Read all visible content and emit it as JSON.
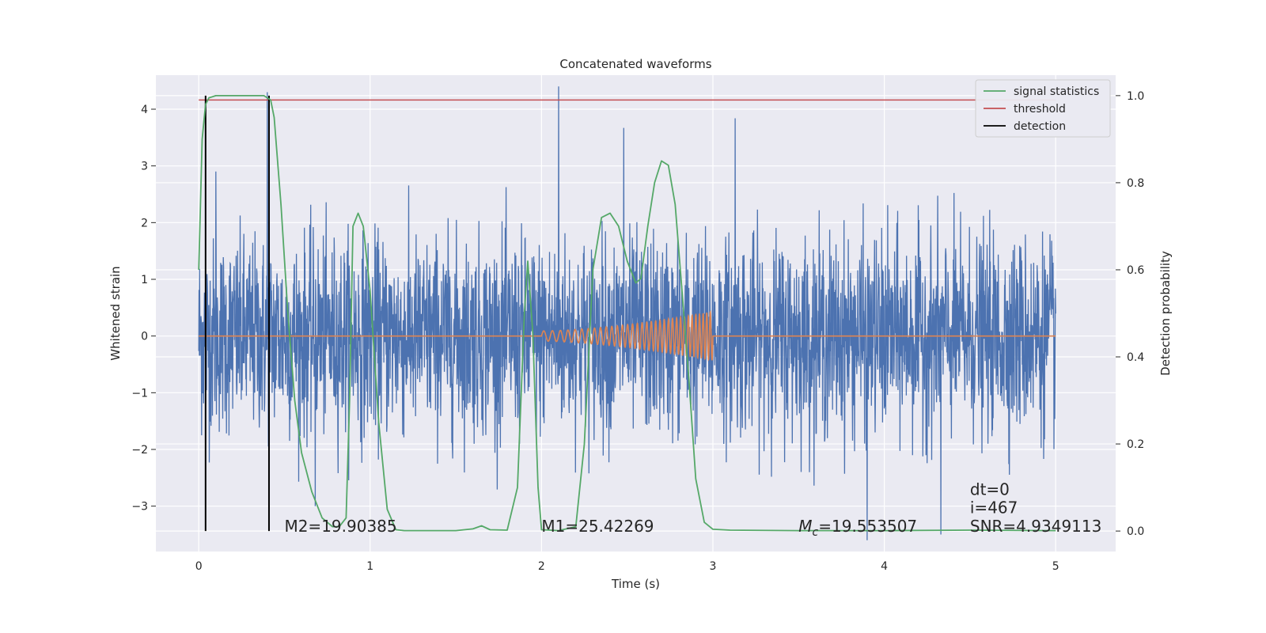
{
  "chart_data": {
    "type": "line",
    "title": "Concatenated waveforms",
    "xlabel": "Time (s)",
    "ylabel": "Whitened strain",
    "y2label": "Detection probability",
    "xlim": [
      -0.25,
      5.35
    ],
    "ylim": [
      -3.8,
      4.6
    ],
    "y2lim": [
      -0.047,
      1.047
    ],
    "xticks": [
      0,
      1,
      2,
      3,
      4,
      5
    ],
    "xtick_labels": [
      "0",
      "1",
      "2",
      "3",
      "4",
      "5"
    ],
    "yticks": [
      -3,
      -2,
      -1,
      0,
      1,
      2,
      3,
      4
    ],
    "ytick_labels": [
      "−3",
      "−2",
      "−1",
      "0",
      "1",
      "2",
      "3",
      "4"
    ],
    "y2ticks": [
      0.0,
      0.2,
      0.4,
      0.6,
      0.8,
      1.0
    ],
    "y2tick_labels": [
      "0.0",
      "0.2",
      "0.4",
      "0.6",
      "0.8",
      "1.0"
    ],
    "grid": true,
    "legend_position": "top-right",
    "legend": [
      "signal statistics",
      "threshold",
      "detection"
    ],
    "colors": {
      "strain": "#4c72b0",
      "template": "#dd8452",
      "statistic": "#55a868",
      "threshold": "#c44e52",
      "detection": "#000000",
      "background": "#eaeaf2",
      "grid": "#ffffff"
    },
    "strain_noise": {
      "x_range": [
        0,
        5
      ],
      "typical_range": [
        -2.2,
        2.4
      ],
      "extremes": [
        {
          "x": 2.1,
          "y": 4.4
        },
        {
          "x": 2.48,
          "y": 3.67
        },
        {
          "x": 3.13,
          "y": 3.84
        },
        {
          "x": 3.9,
          "y": -3.6
        },
        {
          "x": 0.4,
          "y": 4.3
        },
        {
          "x": 0.1,
          "y": 2.9
        },
        {
          "x": 4.33,
          "y": -3.5
        },
        {
          "x": 0.68,
          "y": -3.0
        }
      ]
    },
    "template": {
      "x_range": [
        2.0,
        3.0
      ],
      "amplitude_start": 0.09,
      "amplitude_end": 0.43,
      "cycles": 34
    },
    "signal_statistics": {
      "x": [
        0.0,
        0.02,
        0.04,
        0.06,
        0.1,
        0.15,
        0.3,
        0.38,
        0.42,
        0.44,
        0.48,
        0.52,
        0.56,
        0.6,
        0.66,
        0.72,
        0.78,
        0.82,
        0.86,
        0.88,
        0.9,
        0.93,
        0.96,
        1.0,
        1.05,
        1.1,
        1.15,
        1.2,
        1.3,
        1.5,
        1.6,
        1.65,
        1.7,
        1.8,
        1.86,
        1.9,
        1.92,
        1.95,
        1.98,
        2.0,
        2.05,
        2.1,
        2.2,
        2.25,
        2.3,
        2.35,
        2.4,
        2.45,
        2.5,
        2.55,
        2.58,
        2.62,
        2.66,
        2.7,
        2.74,
        2.78,
        2.82,
        2.86,
        2.9,
        2.95,
        3.0,
        3.1,
        3.5,
        4.0,
        4.5,
        5.0
      ],
      "y": [
        0.6,
        0.9,
        0.98,
        0.995,
        1.0,
        1.0,
        1.0,
        1.0,
        0.99,
        0.95,
        0.75,
        0.5,
        0.3,
        0.18,
        0.09,
        0.03,
        0.01,
        0.01,
        0.03,
        0.3,
        0.7,
        0.73,
        0.7,
        0.55,
        0.25,
        0.05,
        0.003,
        0.001,
        0.001,
        0.001,
        0.005,
        0.012,
        0.003,
        0.002,
        0.1,
        0.5,
        0.62,
        0.45,
        0.1,
        0.003,
        0.002,
        0.001,
        0.01,
        0.2,
        0.6,
        0.72,
        0.73,
        0.7,
        0.62,
        0.57,
        0.58,
        0.7,
        0.8,
        0.85,
        0.84,
        0.75,
        0.55,
        0.35,
        0.12,
        0.02,
        0.004,
        0.002,
        0.001,
        0.001,
        0.002,
        0.001
      ]
    },
    "threshold": {
      "x_range": [
        0,
        5
      ],
      "value": 0.99
    },
    "detections": [
      0.04,
      0.41
    ],
    "annotations": [
      {
        "text": "M2=19.90385",
        "x": 0.5,
        "y": -3.45
      },
      {
        "text": "M1=25.42269",
        "x": 2.0,
        "y": -3.45
      },
      {
        "text_prefix": "M",
        "text_sub": "c",
        "text_suffix": "=19.553507",
        "x": 3.5,
        "y": -3.45
      },
      {
        "text": "dt=0",
        "x": 4.5,
        "y": -2.8
      },
      {
        "text": "i=467",
        "x": 4.5,
        "y": -3.12
      },
      {
        "text": "SNR=4.9349113",
        "x": 4.5,
        "y": -3.45
      }
    ]
  }
}
